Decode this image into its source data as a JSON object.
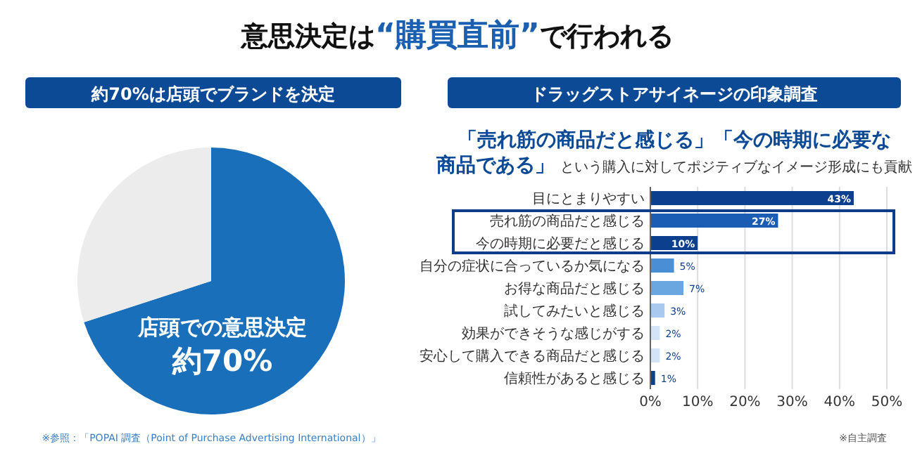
{
  "chart_data": [
    {
      "type": "pie",
      "title": "約70%は店頭でブランドを決定",
      "categories": [
        "店頭での意思決定",
        null
      ],
      "values": [
        70,
        30
      ],
      "colors": [
        "#1a6fbb",
        "#ececec"
      ],
      "value_labels": [
        "約70%",
        null
      ],
      "annotations": [
        "意思決定は“購買直前”で行われる",
        "※参照：「POPAI 調査（Point of Purchase Advertising International）」"
      ]
    },
    {
      "type": "bar",
      "orientation": "horizontal",
      "title": "ドラッグストアサイネージの印象調査",
      "subtitle": "「売れ筋の商品だと感じる」「今の時期に必要な商品である」という購入に対してポジティブなイメージ形成にも貢献",
      "categories": [
        "目にとまりやすい",
        "売れ筋の商品だと感じる",
        "今の時期に必要だと感じる",
        "自分の症状に合っているか気になる",
        "お得な商品だと感じる",
        "試してみたいと感じる",
        "効果ができそうな感じがする",
        "安心して購入できる商品だと感じる",
        "信頼性があると感じる"
      ],
      "values": [
        43,
        27,
        10,
        5,
        7,
        3,
        2,
        2,
        1
      ],
      "colors": [
        "#0d3f8f",
        "#1b5cb5",
        "#0d3f8f",
        "#4a8fd6",
        "#6aa6e0",
        "#a9c9ee",
        "#d4e4f7",
        "#d4e4f7",
        "#0d3f8f"
      ],
      "value_labels": [
        "43%",
        "27%",
        "10%",
        "5%",
        "7%",
        "3%",
        "2%",
        "2%",
        "1%"
      ],
      "xlim": [
        0,
        50
      ],
      "xticks": [
        {
          "value": 0,
          "label": "0%"
        },
        {
          "value": 10,
          "label": "10%"
        },
        {
          "value": 20,
          "label": "20%"
        },
        {
          "value": 30,
          "label": "30%"
        },
        {
          "value": 40,
          "label": "40%"
        },
        {
          "value": 50,
          "label": "50%"
        }
      ],
      "grid": "x",
      "annotations": [
        "※自主調査"
      ]
    }
  ]
}
